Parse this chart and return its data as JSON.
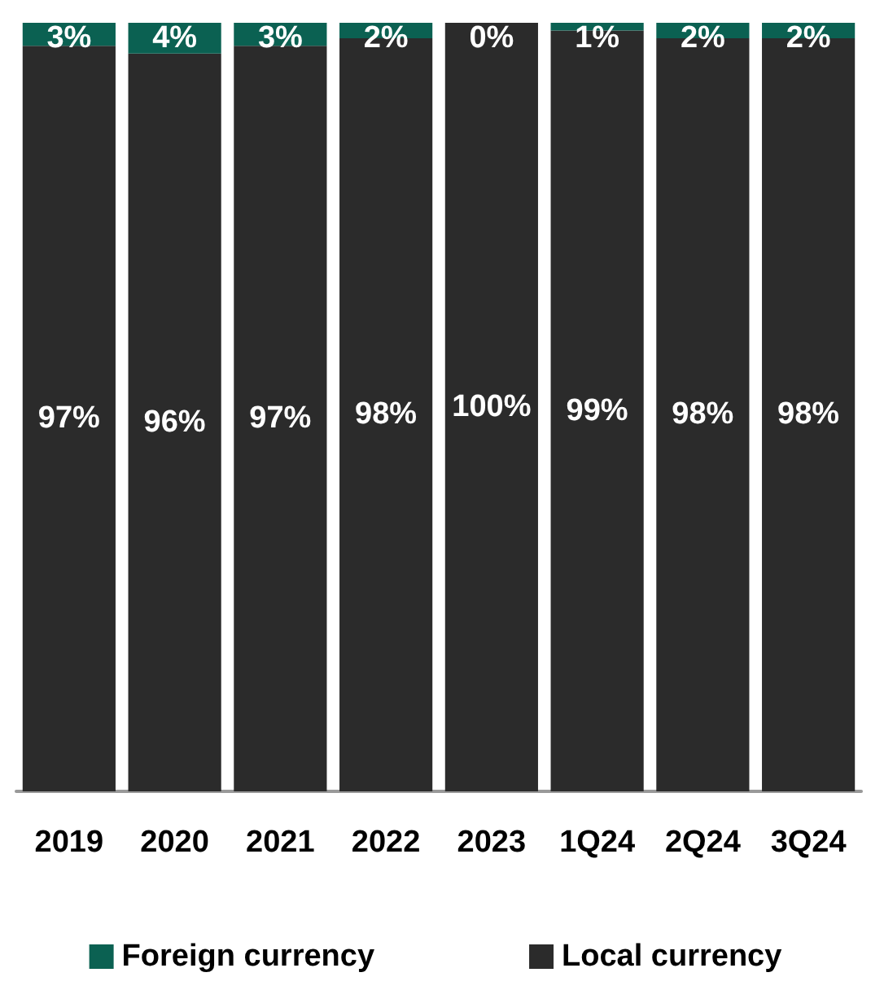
{
  "chart_data": {
    "type": "bar",
    "stacked": true,
    "categories": [
      "2019",
      "2020",
      "2021",
      "2022",
      "2023",
      "1Q24",
      "2Q24",
      "3Q24"
    ],
    "series": [
      {
        "name": "Local currency",
        "color": "#2b2b2b",
        "values": [
          97,
          96,
          97,
          98,
          100,
          99,
          98,
          98
        ],
        "value_labels": [
          "97%",
          "96%",
          "97%",
          "98%",
          "100%",
          "99%",
          "98%",
          "98%"
        ]
      },
      {
        "name": "Foreign currency",
        "color": "#0b6152",
        "values": [
          3,
          4,
          3,
          2,
          0,
          1,
          2,
          2
        ],
        "value_labels": [
          "3%",
          "4%",
          "3%",
          "2%",
          "0%",
          "1%",
          "2%",
          "2%"
        ]
      }
    ],
    "ylim": [
      0,
      100
    ],
    "tick_labels": "x",
    "grid": false,
    "legend": "bottom"
  }
}
